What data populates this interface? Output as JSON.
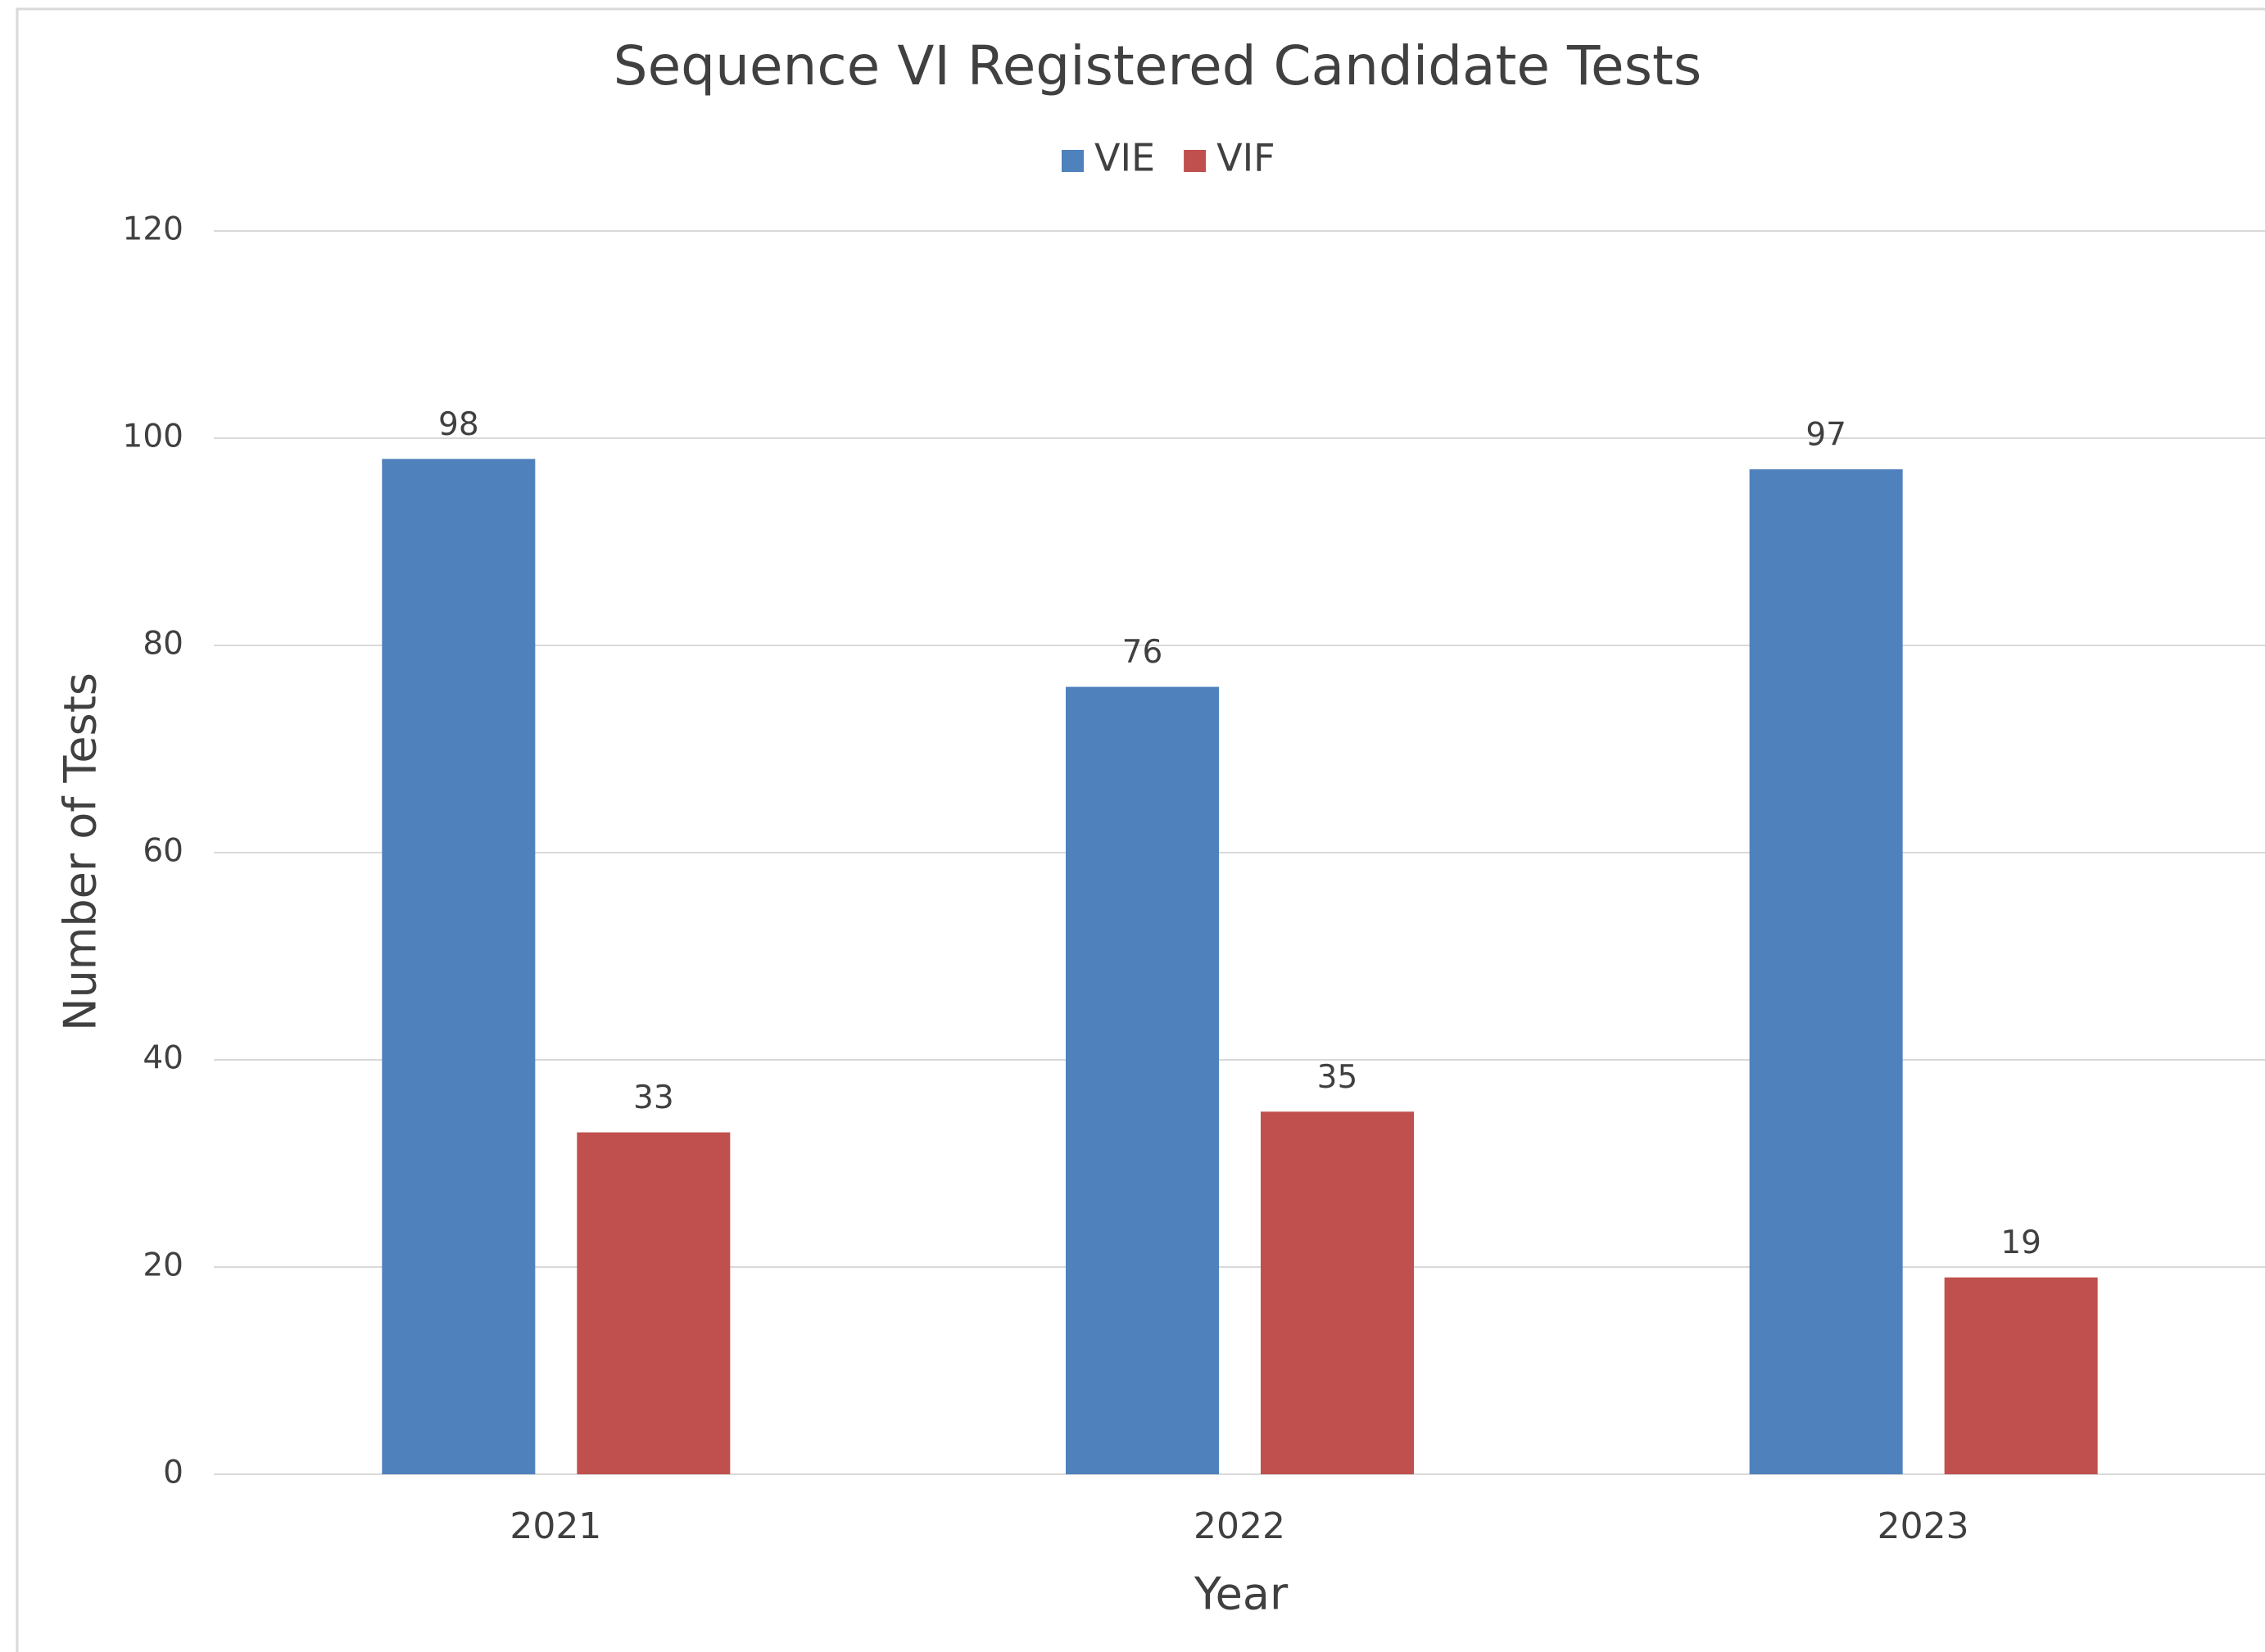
{
  "chart_data": {
    "type": "bar",
    "title": "Sequence VI Registered Candidate Tests",
    "x_label": "Year",
    "y_label": "Number of Tests",
    "categories": [
      "2021",
      "2022",
      "2023"
    ],
    "series": [
      {
        "name": "VIE",
        "color": "#4f81bd",
        "values": [
          98,
          76,
          97
        ]
      },
      {
        "name": "VIF",
        "color": "#c0504d",
        "values": [
          33,
          35,
          19
        ]
      }
    ],
    "ylim": [
      0,
      120
    ],
    "yticks": [
      0,
      20,
      40,
      60,
      80,
      100,
      120
    ],
    "grid": true,
    "legend": "top"
  }
}
